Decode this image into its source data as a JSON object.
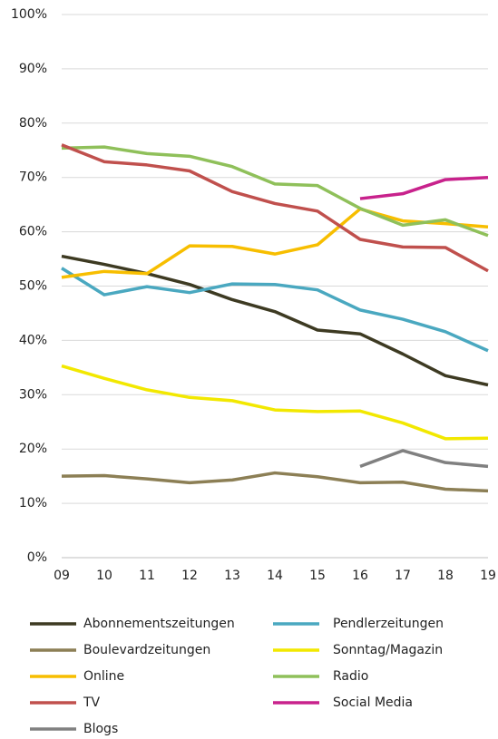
{
  "chart_data": {
    "type": "line",
    "categories": [
      "09",
      "10",
      "11",
      "12",
      "13",
      "14",
      "15",
      "16",
      "17",
      "18",
      "19"
    ],
    "ylim": [
      0,
      100
    ],
    "yticks": [
      {
        "value": 0,
        "label": "0%"
      },
      {
        "value": 10,
        "label": "10%"
      },
      {
        "value": 20,
        "label": "20%"
      },
      {
        "value": 30,
        "label": "30%"
      },
      {
        "value": 40,
        "label": "40%"
      },
      {
        "value": 50,
        "label": "50%"
      },
      {
        "value": 60,
        "label": "60%"
      },
      {
        "value": 70,
        "label": "70%"
      },
      {
        "value": 80,
        "label": "80%"
      },
      {
        "value": 90,
        "label": "90%"
      },
      {
        "value": 100,
        "label": "100%"
      }
    ],
    "grid": true,
    "legend": "bottom",
    "series": [
      {
        "name": "Abonnementszeitungen",
        "color": "#3d3a22",
        "values": [
          55.5,
          54,
          52.3,
          50.3,
          47.5,
          45.3,
          41.9,
          41.2,
          37.5,
          33.5,
          31.8
        ]
      },
      {
        "name": "Pendlerzeitungen",
        "color": "#4aa8c0",
        "values": [
          53.3,
          48.4,
          49.9,
          48.8,
          50.4,
          50.3,
          49.3,
          45.6,
          43.9,
          41.6,
          38.1
        ]
      },
      {
        "name": "Boulevardzeitungen",
        "color": "#8c7f55",
        "values": [
          15,
          15.1,
          14.5,
          13.8,
          14.3,
          15.6,
          14.9,
          13.8,
          13.9,
          12.6,
          12.3
        ]
      },
      {
        "name": "Sonntag/Magazin",
        "color": "#f2e800",
        "values": [
          35.3,
          33,
          30.9,
          29.5,
          28.9,
          27.2,
          26.9,
          27,
          24.8,
          21.9,
          22
        ]
      },
      {
        "name": "Online",
        "color": "#f7be00",
        "values": [
          51.6,
          52.7,
          52.3,
          57.4,
          57.3,
          55.9,
          57.6,
          64.2,
          62,
          61.5,
          60.9
        ]
      },
      {
        "name": "Radio",
        "color": "#8fc05a",
        "values": [
          75.4,
          75.6,
          74.4,
          73.9,
          72,
          68.8,
          68.5,
          64.3,
          61.2,
          62.2,
          59.3
        ]
      },
      {
        "name": "TV",
        "color": "#c0504d",
        "values": [
          76,
          72.9,
          72.3,
          71.2,
          67.4,
          65.2,
          63.8,
          58.6,
          57.2,
          57.1,
          52.8
        ]
      },
      {
        "name": "Social Media",
        "color": "#c8228c",
        "values": [
          null,
          null,
          null,
          null,
          null,
          null,
          null,
          66.1,
          67,
          69.6,
          70
        ]
      },
      {
        "name": "Blogs",
        "color": "#808080",
        "values": [
          null,
          null,
          null,
          null,
          null,
          null,
          null,
          16.8,
          19.7,
          17.5,
          16.8
        ]
      }
    ]
  }
}
